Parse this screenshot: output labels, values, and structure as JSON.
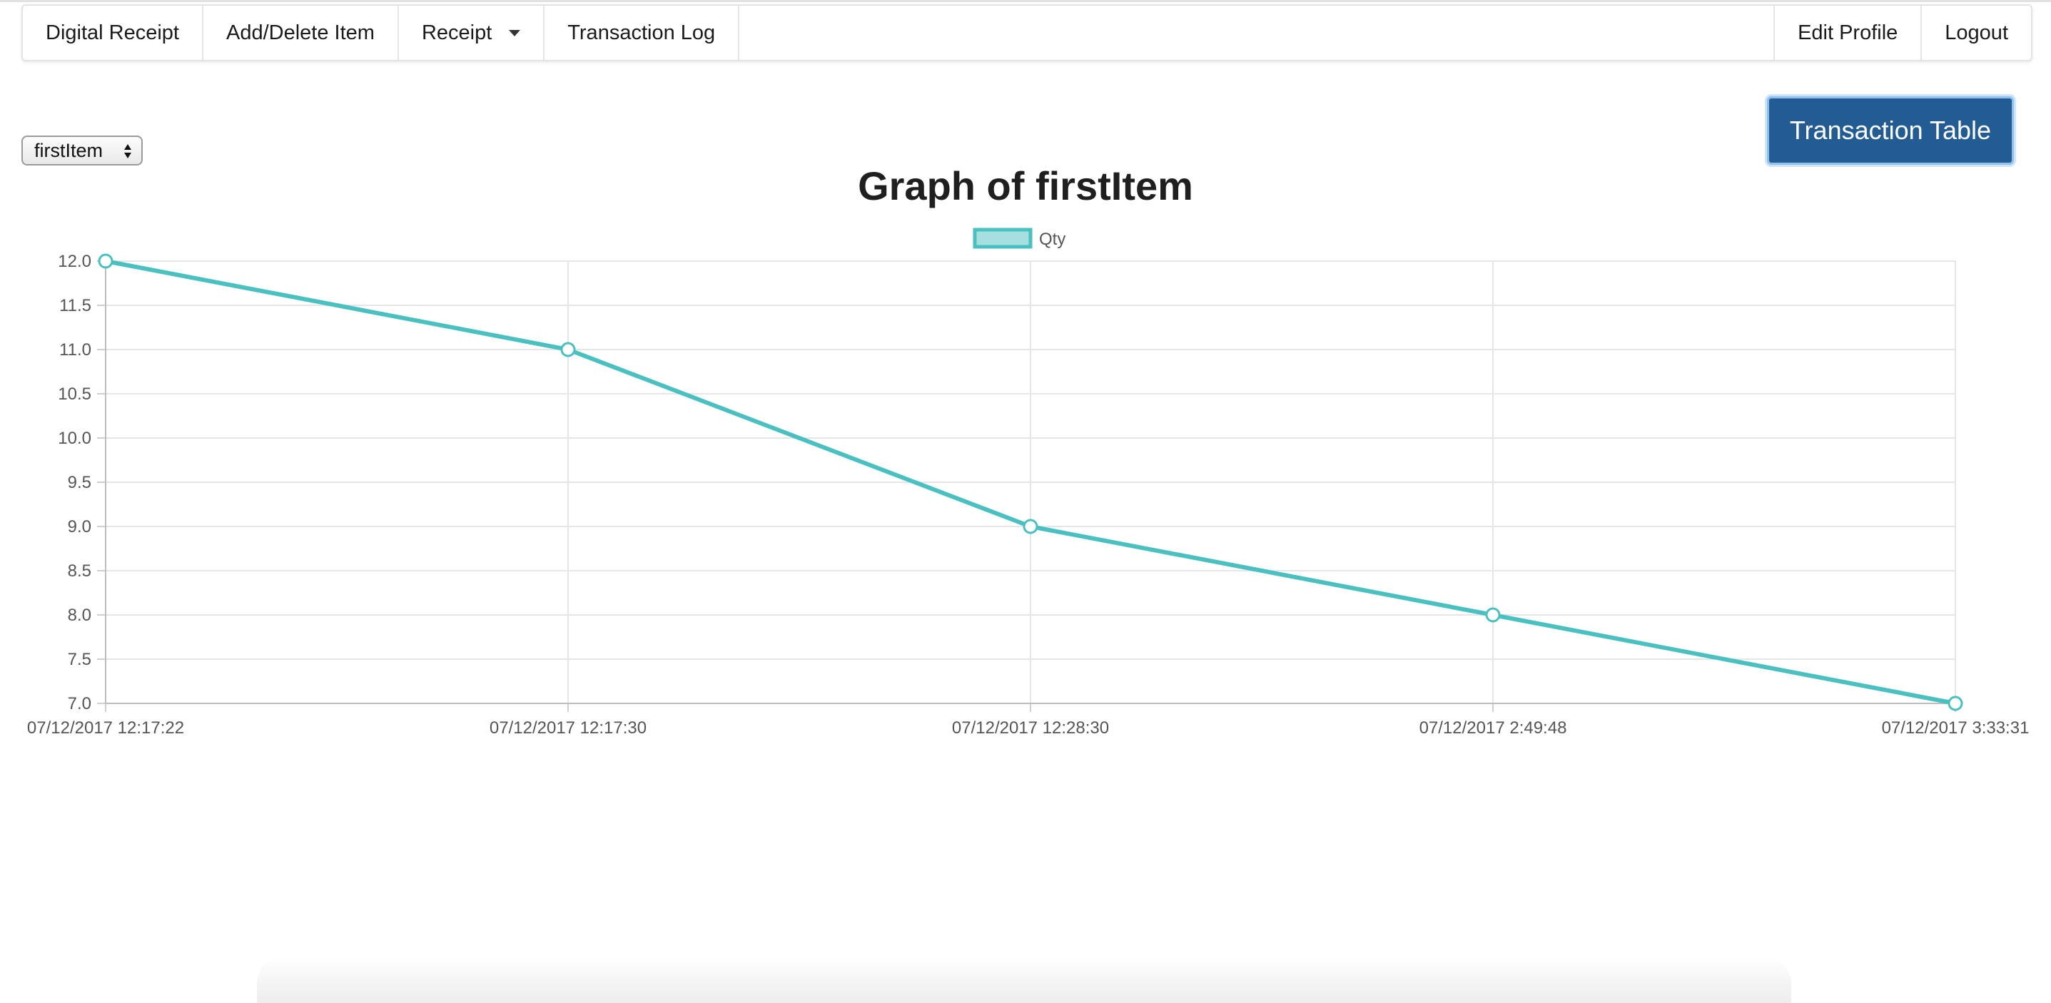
{
  "nav": {
    "left": [
      {
        "name": "nav-digital-receipt",
        "label": "Digital Receipt"
      },
      {
        "name": "nav-add-delete-item",
        "label": "Add/Delete Item"
      },
      {
        "name": "nav-receipt-dropdown",
        "label": "Receipt",
        "dropdown": true
      },
      {
        "name": "nav-transaction-log",
        "label": "Transaction Log"
      }
    ],
    "right": [
      {
        "name": "nav-edit-profile",
        "label": "Edit Profile"
      },
      {
        "name": "nav-logout",
        "label": "Logout"
      }
    ]
  },
  "item_select": {
    "value": "firstItem"
  },
  "transaction_table_button": {
    "label": "Transaction Table"
  },
  "colors": {
    "line": "#4bc0c0",
    "legend_fill": "#a5dfdf",
    "button": "#235c93",
    "grid": "#e6e6e6"
  },
  "chart_data": {
    "type": "line",
    "title": "Graph of firstItem",
    "categories": [
      "07/12/2017 12:17:22",
      "07/12/2017 12:17:30",
      "07/12/2017 12:28:30",
      "07/12/2017 2:49:48",
      "07/12/2017 3:33:31"
    ],
    "series": [
      {
        "name": "Qty",
        "values": [
          12,
          11,
          9,
          8,
          7
        ]
      }
    ],
    "ylim": [
      7.0,
      12.0
    ],
    "yticks": [
      "12.0",
      "11.5",
      "11.0",
      "10.5",
      "10.0",
      "9.5",
      "9.0",
      "8.5",
      "8.0",
      "7.5",
      "7.0"
    ],
    "grid": true,
    "legend": "top-center"
  }
}
